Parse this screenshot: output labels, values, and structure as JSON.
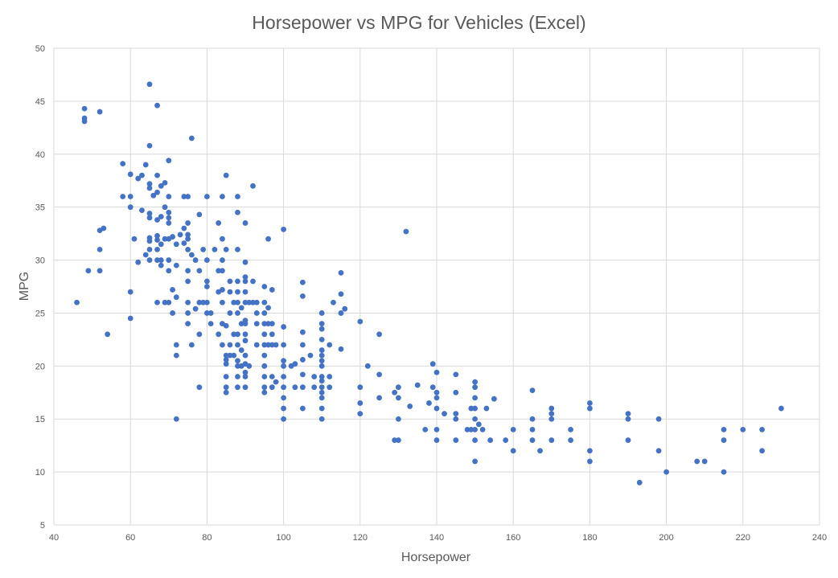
{
  "chart_data": {
    "type": "scatter",
    "title": "Horsepower vs MPG for Vehicles (Excel)",
    "xlabel": "Horsepower",
    "ylabel": "MPG",
    "xlim": [
      40,
      240
    ],
    "ylim": [
      5,
      50
    ],
    "xticks": [
      40,
      60,
      80,
      100,
      120,
      140,
      160,
      180,
      200,
      220,
      240
    ],
    "yticks": [
      5,
      10,
      15,
      20,
      25,
      30,
      35,
      40,
      45,
      50
    ],
    "grid": true,
    "legend": "none",
    "marker_color": "#4472C4",
    "points": [
      [
        46,
        26
      ],
      [
        48,
        44.3
      ],
      [
        48,
        43.4
      ],
      [
        48,
        43.1
      ],
      [
        49,
        29
      ],
      [
        52,
        44
      ],
      [
        52,
        32.8
      ],
      [
        52,
        31
      ],
      [
        52,
        29
      ],
      [
        53,
        33
      ],
      [
        54,
        23
      ],
      [
        58,
        39.1
      ],
      [
        58,
        36
      ],
      [
        60,
        38.1
      ],
      [
        60,
        36
      ],
      [
        60,
        35
      ],
      [
        60,
        27
      ],
      [
        60,
        24.5
      ],
      [
        61,
        32
      ],
      [
        62,
        37.7
      ],
      [
        62,
        29.8
      ],
      [
        63,
        38
      ],
      [
        63,
        34.7
      ],
      [
        64,
        30.5
      ],
      [
        64,
        39
      ],
      [
        65,
        46.6
      ],
      [
        65,
        40.8
      ],
      [
        65,
        37.2
      ],
      [
        65,
        36.8
      ],
      [
        65,
        34.4
      ],
      [
        65,
        34
      ],
      [
        65,
        32.1
      ],
      [
        65,
        31.8
      ],
      [
        65,
        31
      ],
      [
        65,
        30
      ],
      [
        66,
        36.1
      ],
      [
        67,
        44.6
      ],
      [
        67,
        38
      ],
      [
        67,
        36.4
      ],
      [
        67,
        33.8
      ],
      [
        67,
        32.3
      ],
      [
        67,
        31.9
      ],
      [
        67,
        31
      ],
      [
        67,
        30
      ],
      [
        67,
        26
      ],
      [
        68,
        37
      ],
      [
        68,
        34.1
      ],
      [
        68,
        31.5
      ],
      [
        68,
        30
      ],
      [
        68,
        29.5
      ],
      [
        69,
        37.3
      ],
      [
        69,
        35
      ],
      [
        69,
        32
      ],
      [
        69,
        26
      ],
      [
        70,
        39.4
      ],
      [
        70,
        36
      ],
      [
        70,
        34.5
      ],
      [
        70,
        34
      ],
      [
        70,
        33.5
      ],
      [
        70,
        32
      ],
      [
        70,
        30
      ],
      [
        70,
        29
      ],
      [
        70,
        26
      ],
      [
        71,
        32.2
      ],
      [
        71,
        27.2
      ],
      [
        71,
        25
      ],
      [
        72,
        31.5
      ],
      [
        72,
        29.5
      ],
      [
        72,
        26.5
      ],
      [
        72,
        22
      ],
      [
        72,
        21
      ],
      [
        72,
        15
      ],
      [
        73,
        32.4
      ],
      [
        74,
        33
      ],
      [
        74,
        31.6
      ],
      [
        74,
        36
      ],
      [
        75,
        36
      ],
      [
        75,
        33.5
      ],
      [
        75,
        32.4
      ],
      [
        75,
        32
      ],
      [
        75,
        31
      ],
      [
        75,
        29
      ],
      [
        75,
        28
      ],
      [
        75,
        26
      ],
      [
        75,
        25
      ],
      [
        75,
        24
      ],
      [
        76,
        41.5
      ],
      [
        76,
        30.5
      ],
      [
        76,
        22
      ],
      [
        77,
        30
      ],
      [
        77,
        25.4
      ],
      [
        78,
        34.3
      ],
      [
        78,
        29
      ],
      [
        78,
        26
      ],
      [
        78,
        23
      ],
      [
        78,
        18
      ],
      [
        79,
        31
      ],
      [
        79,
        26
      ],
      [
        80,
        36
      ],
      [
        80,
        30
      ],
      [
        80,
        28
      ],
      [
        80,
        27.5
      ],
      [
        80,
        26
      ],
      [
        80,
        25
      ],
      [
        81,
        25
      ],
      [
        81,
        24
      ],
      [
        82,
        31
      ],
      [
        83,
        33.5
      ],
      [
        83,
        29
      ],
      [
        83,
        27
      ],
      [
        83,
        23
      ],
      [
        84,
        36
      ],
      [
        84,
        32
      ],
      [
        84,
        30
      ],
      [
        84,
        29
      ],
      [
        84,
        27.2
      ],
      [
        84,
        26
      ],
      [
        84,
        24
      ],
      [
        84,
        22
      ],
      [
        85,
        38
      ],
      [
        85,
        31
      ],
      [
        85,
        23.8
      ],
      [
        85,
        21
      ],
      [
        85,
        20.6
      ],
      [
        85,
        20.2
      ],
      [
        85,
        19
      ],
      [
        85,
        18
      ],
      [
        85,
        17.5
      ],
      [
        86,
        28
      ],
      [
        86,
        27
      ],
      [
        86,
        25
      ],
      [
        86,
        22
      ],
      [
        86,
        21
      ],
      [
        87,
        26
      ],
      [
        87,
        23
      ],
      [
        87,
        21
      ],
      [
        88,
        36
      ],
      [
        88,
        34.5
      ],
      [
        88,
        31
      ],
      [
        88,
        28
      ],
      [
        88,
        27
      ],
      [
        88,
        26
      ],
      [
        88,
        25
      ],
      [
        88,
        23
      ],
      [
        88,
        22
      ],
      [
        88,
        20.5
      ],
      [
        88,
        20
      ],
      [
        88,
        19
      ],
      [
        88,
        18
      ],
      [
        89,
        25.5
      ],
      [
        89,
        24
      ],
      [
        89,
        21.5
      ],
      [
        89,
        20
      ],
      [
        90,
        33.5
      ],
      [
        90,
        29.8
      ],
      [
        90,
        28.4
      ],
      [
        90,
        28
      ],
      [
        90,
        27
      ],
      [
        90,
        26
      ],
      [
        90,
        24.3
      ],
      [
        90,
        24
      ],
      [
        90,
        23
      ],
      [
        90,
        22.4
      ],
      [
        90,
        21
      ],
      [
        90,
        20.2
      ],
      [
        90,
        19.4
      ],
      [
        90,
        19
      ],
      [
        90,
        18
      ],
      [
        91,
        26
      ],
      [
        91,
        20
      ],
      [
        92,
        37
      ],
      [
        92,
        28
      ],
      [
        92,
        26
      ],
      [
        93,
        26
      ],
      [
        93,
        25
      ],
      [
        93,
        24
      ],
      [
        93,
        22
      ],
      [
        95,
        27.5
      ],
      [
        95,
        26
      ],
      [
        95,
        25
      ],
      [
        95,
        24
      ],
      [
        95,
        23
      ],
      [
        95,
        22
      ],
      [
        95,
        21
      ],
      [
        95,
        20
      ],
      [
        95,
        19
      ],
      [
        95,
        18
      ],
      [
        95,
        17.5
      ],
      [
        96,
        32
      ],
      [
        96,
        25.5
      ],
      [
        96,
        24
      ],
      [
        96,
        22
      ],
      [
        97,
        27.2
      ],
      [
        97,
        24
      ],
      [
        97,
        23
      ],
      [
        97,
        22
      ],
      [
        97,
        19
      ],
      [
        97,
        18
      ],
      [
        98,
        22
      ],
      [
        98,
        18.5
      ],
      [
        100,
        32.9
      ],
      [
        100,
        23.7
      ],
      [
        100,
        22
      ],
      [
        100,
        20.5
      ],
      [
        100,
        20
      ],
      [
        100,
        19
      ],
      [
        100,
        18
      ],
      [
        100,
        17
      ],
      [
        100,
        16
      ],
      [
        100,
        15
      ],
      [
        102,
        20
      ],
      [
        103,
        20.2
      ],
      [
        103,
        18
      ],
      [
        105,
        27.9
      ],
      [
        105,
        26.6
      ],
      [
        105,
        23.2
      ],
      [
        105,
        22
      ],
      [
        105,
        20.6
      ],
      [
        105,
        19.2
      ],
      [
        105,
        18
      ],
      [
        105,
        16
      ],
      [
        107,
        21
      ],
      [
        108,
        19
      ],
      [
        108,
        18
      ],
      [
        110,
        25
      ],
      [
        110,
        24
      ],
      [
        110,
        23.5
      ],
      [
        110,
        22.5
      ],
      [
        110,
        21.5
      ],
      [
        110,
        21
      ],
      [
        110,
        20.5
      ],
      [
        110,
        20
      ],
      [
        110,
        19
      ],
      [
        110,
        18.6
      ],
      [
        110,
        18
      ],
      [
        110,
        17.5
      ],
      [
        110,
        17
      ],
      [
        110,
        16
      ],
      [
        110,
        15
      ],
      [
        112,
        22
      ],
      [
        112,
        19
      ],
      [
        112,
        18
      ],
      [
        113,
        26
      ],
      [
        115,
        28.8
      ],
      [
        115,
        26.8
      ],
      [
        115,
        25
      ],
      [
        115,
        21.6
      ],
      [
        116,
        25.4
      ],
      [
        120,
        24.2
      ],
      [
        120,
        18
      ],
      [
        120,
        16.5
      ],
      [
        120,
        15.5
      ],
      [
        122,
        20
      ],
      [
        125,
        23
      ],
      [
        125,
        19.2
      ],
      [
        125,
        17
      ],
      [
        129,
        17.5
      ],
      [
        129,
        13
      ],
      [
        130,
        18
      ],
      [
        130,
        17
      ],
      [
        130,
        15
      ],
      [
        130,
        13
      ],
      [
        132,
        32.7
      ],
      [
        133,
        16.2
      ],
      [
        135,
        18.2
      ],
      [
        137,
        14
      ],
      [
        138,
        16.5
      ],
      [
        139,
        20.2
      ],
      [
        139,
        18
      ],
      [
        140,
        19.4
      ],
      [
        140,
        17.5
      ],
      [
        140,
        17
      ],
      [
        140,
        16
      ],
      [
        140,
        14
      ],
      [
        140,
        13
      ],
      [
        142,
        15.5
      ],
      [
        145,
        19.2
      ],
      [
        145,
        17.5
      ],
      [
        145,
        15.5
      ],
      [
        145,
        15
      ],
      [
        145,
        13
      ],
      [
        148,
        14
      ],
      [
        149,
        16
      ],
      [
        149,
        14
      ],
      [
        150,
        18.5
      ],
      [
        150,
        18
      ],
      [
        150,
        17
      ],
      [
        150,
        16
      ],
      [
        150,
        15
      ],
      [
        150,
        14
      ],
      [
        150,
        13
      ],
      [
        150,
        11
      ],
      [
        151,
        14.5
      ],
      [
        152,
        14
      ],
      [
        153,
        16
      ],
      [
        154,
        13
      ],
      [
        155,
        16.9
      ],
      [
        158,
        13
      ],
      [
        160,
        14
      ],
      [
        160,
        12
      ],
      [
        165,
        17.7
      ],
      [
        165,
        15
      ],
      [
        165,
        14
      ],
      [
        165,
        13
      ],
      [
        167,
        12
      ],
      [
        170,
        16
      ],
      [
        170,
        15.5
      ],
      [
        170,
        15
      ],
      [
        170,
        13
      ],
      [
        175,
        14
      ],
      [
        175,
        13
      ],
      [
        180,
        16.5
      ],
      [
        180,
        16
      ],
      [
        180,
        12
      ],
      [
        180,
        11
      ],
      [
        190,
        15.5
      ],
      [
        190,
        15
      ],
      [
        190,
        13
      ],
      [
        193,
        9
      ],
      [
        198,
        15
      ],
      [
        198,
        12
      ],
      [
        200,
        10
      ],
      [
        208,
        11
      ],
      [
        210,
        11
      ],
      [
        215,
        14
      ],
      [
        215,
        13
      ],
      [
        215,
        10
      ],
      [
        220,
        14
      ],
      [
        225,
        14
      ],
      [
        225,
        12
      ],
      [
        230,
        16
      ]
    ]
  }
}
